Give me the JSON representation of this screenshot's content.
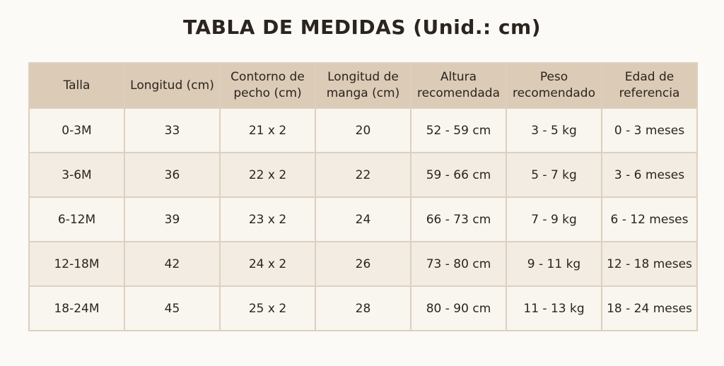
{
  "title": "TABLA DE MEDIDAS (Unid.: cm)",
  "table": {
    "header": [
      "Talla",
      "Longitud (cm)",
      "Contorno de pecho (cm)",
      "Longitud de manga (cm)",
      "Altura recomendada",
      "Peso recomendado",
      "Edad de referencia"
    ],
    "rows": [
      [
        "0-3M",
        "33",
        "21 x 2",
        "20",
        "52 - 59 cm",
        "3 - 5 kg",
        "0 - 3 meses"
      ],
      [
        "3-6M",
        "36",
        "22 x 2",
        "22",
        "59 - 66 cm",
        "5 - 7 kg",
        "3 - 6 meses"
      ],
      [
        "6-12M",
        "39",
        "23 x 2",
        "24",
        "66 - 73 cm",
        "7 - 9 kg",
        "6 - 12 meses"
      ],
      [
        "12-18M",
        "42",
        "24 x 2",
        "26",
        "73 - 80 cm",
        "9 - 11 kg",
        "12 - 18 meses"
      ],
      [
        "18-24M",
        "45",
        "25 x 2",
        "28",
        "80 - 90 cm",
        "11 - 13 kg",
        "18 - 24 meses"
      ]
    ]
  }
}
